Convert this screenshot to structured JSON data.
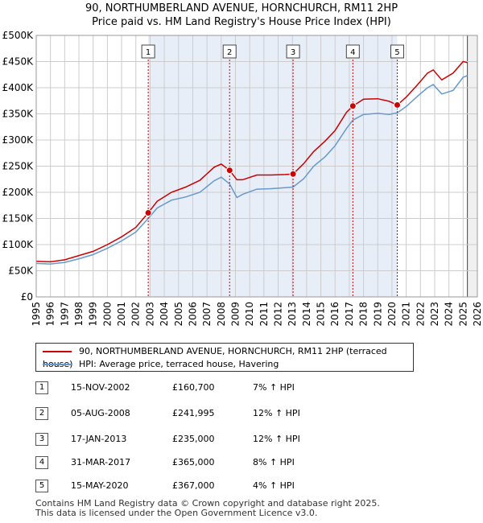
{
  "chart_data": {
    "type": "line",
    "title": "90, NORTHUMBERLAND AVENUE, HORNCHURCH, RM11 2HP",
    "subtitle": "Price paid vs. HM Land Registry's House Price Index (HPI)",
    "ylim": [
      0,
      500000
    ],
    "xlim": [
      1995,
      2026
    ],
    "yticks": [
      "£0",
      "£50K",
      "£100K",
      "£150K",
      "£200K",
      "£250K",
      "£300K",
      "£350K",
      "£400K",
      "£450K",
      "£500K"
    ],
    "xticks": [
      "1995",
      "1996",
      "1997",
      "1998",
      "1999",
      "2000",
      "2001",
      "2002",
      "2003",
      "2004",
      "2005",
      "2006",
      "2007",
      "2008",
      "2009",
      "2010",
      "2011",
      "2012",
      "2013",
      "2014",
      "2015",
      "2016",
      "2017",
      "2018",
      "2019",
      "2020",
      "2021",
      "2022",
      "2023",
      "2024",
      "2025",
      "2026"
    ],
    "shaded_span": [
      2002.87,
      2020.37
    ],
    "future_from": 2025.3,
    "series": [
      {
        "name": "90, NORTHUMBERLAND AVENUE, HORNCHURCH, RM11 2HP (terraced house)",
        "color": "#cc0000",
        "x": [
          1995,
          1996,
          1997,
          1998,
          1999,
          2000,
          2001,
          2002,
          2002.87,
          2003.5,
          2004.5,
          2005.5,
          2006.5,
          2007.5,
          2008.0,
          2008.59,
          2009.1,
          2009.5,
          2010.5,
          2011.5,
          2012.5,
          2013.05,
          2013.8,
          2014.5,
          2015.3,
          2016.0,
          2016.8,
          2017.25,
          2018.0,
          2019.0,
          2019.8,
          2020.37,
          2021.0,
          2021.8,
          2022.5,
          2022.9,
          2023.5,
          2024.3,
          2025.0,
          2025.3
        ],
        "y": [
          68000,
          67000,
          71000,
          79000,
          87000,
          100000,
          115000,
          133000,
          160700,
          183000,
          200000,
          210000,
          223000,
          248000,
          254000,
          241995,
          224000,
          224000,
          233000,
          233000,
          234000,
          235000,
          255000,
          278000,
          298000,
          318000,
          353000,
          365000,
          378000,
          379000,
          374000,
          367000,
          382000,
          406000,
          428000,
          434000,
          415000,
          428000,
          450000,
          448000
        ]
      },
      {
        "name": "HPI: Average price, terraced house, Havering",
        "color": "#6699cc",
        "x": [
          1995,
          1996,
          1997,
          1998,
          1999,
          2000,
          2001,
          2002,
          2002.87,
          2003.5,
          2004.5,
          2005.5,
          2006.5,
          2007.5,
          2008.0,
          2008.59,
          2009.1,
          2009.5,
          2010.5,
          2011.5,
          2012.5,
          2013.05,
          2013.8,
          2014.5,
          2015.3,
          2016.0,
          2016.8,
          2017.25,
          2018.0,
          2019.0,
          2019.8,
          2020.37,
          2021.0,
          2021.8,
          2022.5,
          2022.9,
          2023.5,
          2024.3,
          2025.0,
          2025.3
        ],
        "y": [
          64000,
          63000,
          66000,
          73000,
          81000,
          93000,
          107000,
          124000,
          150000,
          170000,
          185000,
          191000,
          200000,
          222000,
          229000,
          216000,
          190000,
          196000,
          206000,
          207000,
          209000,
          210000,
          226000,
          250000,
          268000,
          289000,
          322000,
          338000,
          349000,
          351000,
          349000,
          352000,
          364000,
          384000,
          400000,
          406000,
          388000,
          395000,
          420000,
          423000
        ]
      }
    ],
    "sales": [
      {
        "n": "1",
        "x": 2002.87,
        "y": 160700
      },
      {
        "n": "2",
        "x": 2008.59,
        "y": 241995
      },
      {
        "n": "3",
        "x": 2013.05,
        "y": 235000
      },
      {
        "n": "4",
        "x": 2017.25,
        "y": 365000
      },
      {
        "n": "5",
        "x": 2020.37,
        "y": 367000
      }
    ]
  },
  "legend": {
    "property": "90, NORTHUMBERLAND AVENUE, HORNCHURCH, RM11 2HP (terraced house)",
    "hpi": "HPI: Average price, terraced house, Havering"
  },
  "transactions": [
    {
      "n": "1",
      "date": "15-NOV-2002",
      "price": "£160,700",
      "pct": "7% ↑ HPI"
    },
    {
      "n": "2",
      "date": "05-AUG-2008",
      "price": "£241,995",
      "pct": "12% ↑ HPI"
    },
    {
      "n": "3",
      "date": "17-JAN-2013",
      "price": "£235,000",
      "pct": "12% ↑ HPI"
    },
    {
      "n": "4",
      "date": "31-MAR-2017",
      "price": "£365,000",
      "pct": "8% ↑ HPI"
    },
    {
      "n": "5",
      "date": "15-MAY-2020",
      "price": "£367,000",
      "pct": "4% ↑ HPI"
    }
  ],
  "footer": {
    "line1": "Contains HM Land Registry data © Crown copyright and database right 2025.",
    "line2": "This data is licensed under the Open Government Licence v3.0."
  }
}
